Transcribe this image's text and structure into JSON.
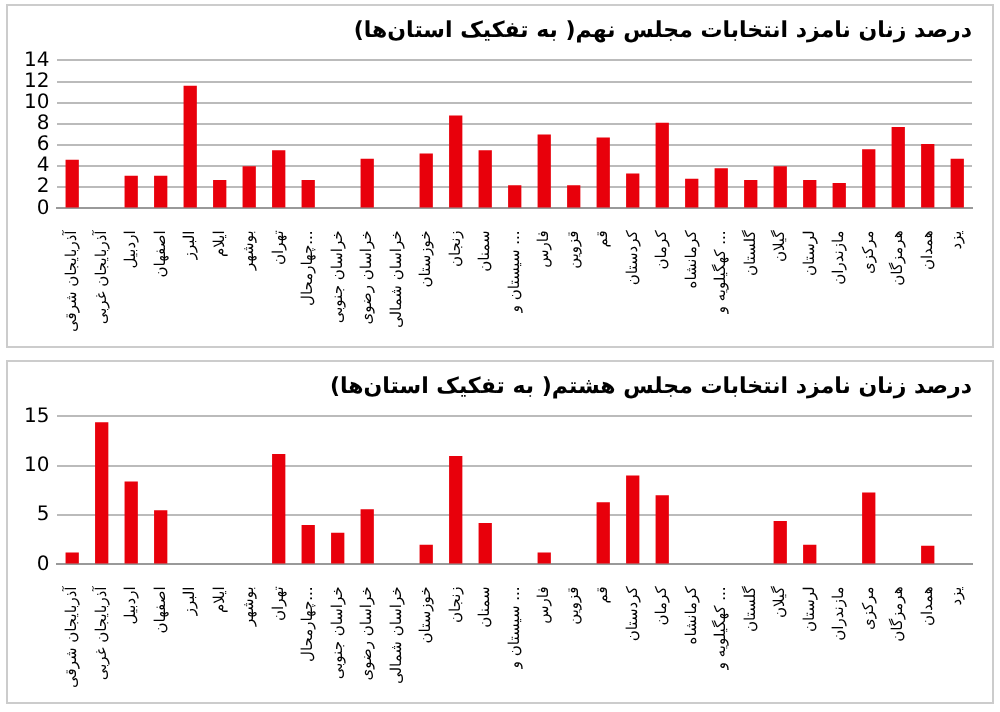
{
  "chart_data": [
    {
      "type": "bar",
      "title": "درصد زنان نامزد انتخابات مجلس نهم( به تفکیک استان‌ها)",
      "categories": [
        "آذربایجان شرقی",
        "آذربایجان غربی",
        "اردبیل",
        "اصفهان",
        "البرز",
        "ایلام",
        "بوشهر",
        "تهران",
        "چهارمحال...",
        "خراسان جنوبی",
        "خراسان رضوی",
        "خراسان شمالی",
        "خوزستان",
        "زنجان",
        "سمنان",
        "سیستان و ...",
        "فارس",
        "قزوین",
        "قم",
        "کردستان",
        "کرمان",
        "کرمانشاه",
        "کهگیلویه و ...",
        "گلستان",
        "گیلان",
        "لرستان",
        "مازندران",
        "مرکزی",
        "هرمزگان",
        "همدان",
        "یزد"
      ],
      "series": [
        {
          "color": "#e8000b",
          "values": [
            4.6,
            0,
            3.1,
            3.1,
            11.6,
            2.7,
            4.0,
            5.5,
            2.7,
            0,
            4.7,
            0,
            5.2,
            8.8,
            5.5,
            2.2,
            7.0,
            2.2,
            6.7,
            3.3,
            8.1,
            2.8,
            3.8,
            2.7,
            4.0,
            2.7,
            2.4,
            5.6,
            7.7,
            6.1,
            4.7
          ]
        }
      ],
      "ylim": [
        0,
        14
      ],
      "yticks": [
        0,
        2,
        4,
        6,
        8,
        10,
        12,
        14
      ],
      "grid": "y",
      "legend": false
    },
    {
      "type": "bar",
      "title": "درصد زنان نامزد انتخابات مجلس هشتم( به تفکیک استان‌ها)",
      "categories": [
        "آذربایجان شرقی",
        "آذربایجان غربی",
        "اردبیل",
        "اصفهان",
        "البرز",
        "ایلام",
        "بوشهر",
        "تهران",
        "چهارمحال...",
        "خراسان جنوبی",
        "خراسان رضوی",
        "خراسان شمالی",
        "خوزستان",
        "زنجان",
        "سمنان",
        "سیستان و ...",
        "فارس",
        "قزوین",
        "قم",
        "کردستان",
        "کرمان",
        "کرمانشاه",
        "کهگیلویه و ...",
        "گلستان",
        "گیلان",
        "لرستان",
        "مازندران",
        "مرکزی",
        "هرمزگان",
        "همدان",
        "یزد"
      ],
      "series": [
        {
          "color": "#e8000b",
          "values": [
            1.2,
            14.4,
            8.4,
            5.5,
            0,
            0,
            0,
            11.2,
            4.0,
            3.2,
            5.6,
            0,
            2.0,
            11.0,
            4.2,
            0,
            1.2,
            0,
            6.3,
            9.0,
            7.0,
            0,
            0,
            0,
            4.4,
            2.0,
            0,
            7.3,
            0,
            1.9,
            0
          ]
        }
      ],
      "ylim": [
        0,
        15
      ],
      "yticks": [
        0,
        5,
        10,
        15
      ],
      "grid": "y",
      "legend": false
    }
  ]
}
